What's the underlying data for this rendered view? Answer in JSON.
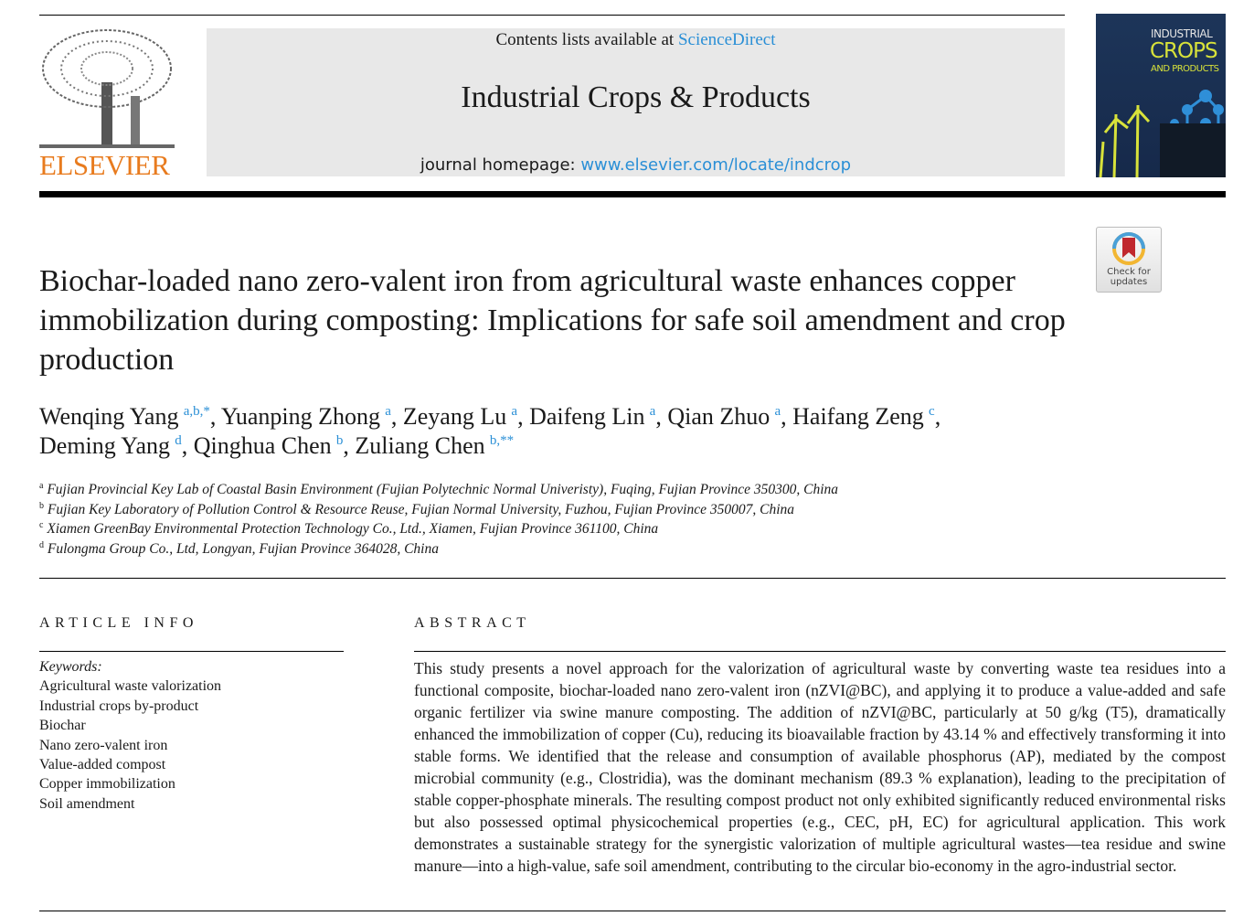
{
  "header": {
    "contents_prefix": "Contents lists available at ",
    "contents_link": "ScienceDirect",
    "journal_title": "Industrial Crops & Products",
    "homepage_prefix": "journal homepage: ",
    "homepage_link": "www.elsevier.com/locate/indcrop",
    "publisher_logo_text": "ELSEVIER",
    "cover": {
      "line1": "INDUSTRIAL",
      "line2": "CROPS",
      "line3": "AND PRODUCTS"
    },
    "check_updates": {
      "line1": "Check for",
      "line2": "updates"
    }
  },
  "article": {
    "title": "Biochar-loaded nano zero-valent iron from agricultural waste enhances copper immobilization during composting: Implications for safe soil amendment and crop production",
    "authors": [
      {
        "name": "Wenqing Yang",
        "aff": "a,b,*"
      },
      {
        "name": "Yuanping Zhong",
        "aff": "a"
      },
      {
        "name": "Zeyang Lu",
        "aff": "a"
      },
      {
        "name": "Daifeng Lin",
        "aff": "a"
      },
      {
        "name": "Qian Zhuo",
        "aff": "a"
      },
      {
        "name": "Haifang Zeng",
        "aff": "c"
      },
      {
        "name": "Deming Yang",
        "aff": "d"
      },
      {
        "name": "Qinghua Chen",
        "aff": "b"
      },
      {
        "name": "Zuliang Chen",
        "aff": "b,**"
      }
    ],
    "affiliations": [
      {
        "key": "a",
        "text": "Fujian Provincial Key Lab of Coastal Basin Environment (Fujian Polytechnic Normal Univeristy), Fuqing, Fujian Province 350300, China"
      },
      {
        "key": "b",
        "text": "Fujian Key Laboratory of Pollution Control & Resource Reuse, Fujian Normal University, Fuzhou, Fujian Province 350007, China"
      },
      {
        "key": "c",
        "text": "Xiamen GreenBay Environmental Protection Technology Co., Ltd., Xiamen, Fujian Province 361100, China"
      },
      {
        "key": "d",
        "text": "Fulongma Group Co., Ltd, Longyan, Fujian Province 364028, China"
      }
    ]
  },
  "article_info": {
    "heading": "ARTICLE INFO",
    "keywords_label": "Keywords:",
    "keywords": [
      "Agricultural waste valorization",
      "Industrial crops by-product",
      "Biochar",
      "Nano zero-valent iron",
      "Value-added compost",
      "Copper immobilization",
      "Soil amendment"
    ]
  },
  "abstract": {
    "heading": "ABSTRACT",
    "text": "This study presents a novel approach for the valorization of agricultural waste by converting waste tea residues into a functional composite, biochar-loaded nano zero-valent iron (nZVI@BC), and applying it to produce a value-added and safe organic fertilizer via swine manure composting. The addition of nZVI@BC, particularly at 50 g/kg (T5), dramatically enhanced the immobilization of copper (Cu), reducing its bioavailable fraction by 43.14 % and effectively transforming it into stable forms. We identified that the release and consumption of available phosphorus (AP), mediated by the compost microbial community (e.g., Clostridia), was the dominant mechanism (89.3 % explanation), leading to the precipitation of stable copper-phosphate minerals. The resulting compost product not only exhibited significantly reduced environmental risks but also possessed optimal physicochemical properties (e.g., CEC, pH, EC) for agricultural application. This work demonstrates a sustainable strategy for the synergistic valorization of multiple agricultural wastes—tea residue and swine manure—into a high-value, safe soil amendment, contributing to the circular bio-economy in the agro-industrial sector."
  }
}
